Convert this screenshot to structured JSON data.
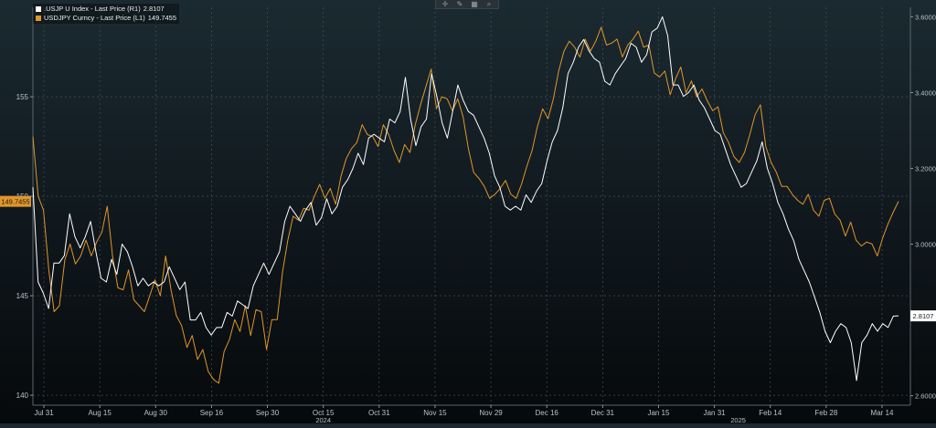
{
  "toolbar": {
    "icons": [
      "crosshair-icon",
      "pencil-icon",
      "grid-icon",
      "zoom-icon"
    ],
    "glyphs": [
      "✛",
      "✎",
      "▦",
      "⌕"
    ]
  },
  "legend": {
    "series": [
      {
        "label": ".USJP U Index - Last Price (R1)",
        "value": "2.8107",
        "color": "#ffffff"
      },
      {
        "label": "USDJPY Curncy - Last Price (L1)",
        "value": "149.7455",
        "color": "#e0962a"
      }
    ]
  },
  "chart_data": {
    "type": "line",
    "left_axis": {
      "ticks": [
        "155",
        "150",
        "145",
        "140"
      ],
      "ylim": [
        139.5,
        159.5
      ]
    },
    "right_axis": {
      "ticks": [
        "3.6000",
        "3.4000",
        "3.2000",
        "3.0000",
        "2.6000"
      ],
      "ylim": [
        2.575,
        3.625
      ]
    },
    "x_ticks": [
      "Jul 31",
      "Aug 15",
      "Aug 30",
      "Sep 16",
      "Sep 30",
      "Oct 15",
      "Oct 31",
      "Nov 15",
      "Nov 29",
      "Dec 16",
      "Dec 31",
      "Jan 15",
      "Jan 31",
      "Feb 14",
      "Feb 28",
      "Mar 14"
    ],
    "year_labels": [
      "2024",
      "2025"
    ],
    "last_value_tags": {
      "left": "149.7455",
      "right": "2.8107"
    },
    "series": [
      {
        "name": "USDJPY Curncy - Last Price (L1)",
        "axis": "left",
        "color": "#e0962a",
        "values": [
          153.0,
          150.0,
          149.3,
          146.3,
          144.2,
          144.5,
          146.8,
          147.6,
          146.6,
          147.0,
          147.8,
          147.0,
          147.7,
          148.2,
          149.5,
          147.0,
          145.4,
          145.3,
          146.3,
          144.8,
          144.5,
          144.2,
          145.0,
          145.8,
          145.0,
          147.0,
          145.3,
          144.0,
          143.5,
          142.4,
          143.0,
          141.8,
          142.3,
          141.2,
          140.8,
          140.6,
          142.2,
          142.8,
          143.8,
          143.2,
          144.5,
          143.0,
          144.3,
          144.2,
          142.3,
          143.8,
          143.8,
          146.2,
          147.8,
          149.0,
          148.8,
          149.4,
          149.3,
          150.0,
          150.6,
          149.9,
          150.4,
          149.6,
          151.0,
          151.9,
          152.4,
          152.7,
          153.6,
          153.1,
          153.0,
          152.5,
          153.6,
          153.1,
          152.3,
          151.7,
          152.6,
          152.2,
          153.6,
          154.6,
          155.5,
          156.4,
          154.4,
          155.0,
          154.9,
          154.3,
          154.9,
          154.0,
          152.4,
          151.2,
          150.9,
          150.5,
          149.9,
          150.1,
          150.4,
          150.8,
          150.1,
          149.9,
          150.6,
          151.5,
          152.3,
          153.5,
          154.4,
          153.9,
          154.9,
          156.3,
          157.3,
          157.8,
          157.5,
          157.0,
          157.9,
          157.3,
          157.8,
          158.5,
          157.6,
          157.7,
          157.9,
          157.0,
          157.6,
          157.9,
          158.3,
          157.5,
          157.6,
          156.2,
          156.0,
          156.3,
          155.1,
          155.9,
          156.5,
          155.2,
          155.8,
          155.0,
          155.4,
          154.8,
          154.3,
          154.5,
          153.2,
          152.7,
          152.0,
          151.7,
          152.2,
          153.1,
          154.1,
          154.6,
          152.5,
          151.7,
          151.2,
          150.5,
          150.5,
          150.1,
          149.8,
          149.6,
          150.1,
          149.3,
          149.0,
          149.8,
          149.9,
          149.1,
          148.8,
          148.0,
          148.7,
          147.8,
          147.5,
          147.7,
          147.6,
          147.0,
          147.9,
          148.6,
          149.2,
          149.7455
        ]
      },
      {
        "name": ".USJP U Index - Last Price (R1)",
        "axis": "right",
        "color": "#ffffff",
        "values": [
          3.15,
          2.9,
          2.87,
          2.83,
          2.95,
          2.95,
          2.97,
          3.08,
          3.02,
          2.99,
          3.02,
          3.06,
          2.98,
          2.91,
          2.9,
          2.96,
          2.92,
          3.0,
          2.98,
          2.94,
          2.89,
          2.91,
          2.89,
          2.9,
          2.89,
          2.9,
          2.94,
          2.91,
          2.88,
          2.9,
          2.8,
          2.8,
          2.82,
          2.78,
          2.76,
          2.78,
          2.78,
          2.82,
          2.81,
          2.85,
          2.84,
          2.83,
          2.89,
          2.92,
          2.95,
          2.92,
          2.95,
          2.98,
          3.06,
          3.1,
          3.08,
          3.06,
          3.09,
          3.11,
          3.05,
          3.07,
          3.12,
          3.08,
          3.1,
          3.15,
          3.17,
          3.2,
          3.24,
          3.21,
          3.28,
          3.29,
          3.28,
          3.27,
          3.33,
          3.32,
          3.35,
          3.44,
          3.33,
          3.26,
          3.31,
          3.33,
          3.45,
          3.39,
          3.32,
          3.28,
          3.35,
          3.42,
          3.38,
          3.35,
          3.34,
          3.31,
          3.28,
          3.24,
          3.18,
          3.15,
          3.1,
          3.09,
          3.1,
          3.09,
          3.13,
          3.11,
          3.14,
          3.16,
          3.22,
          3.27,
          3.3,
          3.36,
          3.45,
          3.48,
          3.52,
          3.54,
          3.51,
          3.49,
          3.48,
          3.43,
          3.42,
          3.45,
          3.47,
          3.49,
          3.53,
          3.52,
          3.48,
          3.5,
          3.56,
          3.57,
          3.6,
          3.55,
          3.42,
          3.42,
          3.39,
          3.4,
          3.42,
          3.38,
          3.36,
          3.33,
          3.3,
          3.29,
          3.25,
          3.21,
          3.18,
          3.15,
          3.16,
          3.19,
          3.22,
          3.27,
          3.2,
          3.16,
          3.11,
          3.08,
          3.04,
          3.01,
          2.96,
          2.93,
          2.9,
          2.86,
          2.82,
          2.77,
          2.74,
          2.77,
          2.79,
          2.78,
          2.74,
          2.64,
          2.74,
          2.76,
          2.79,
          2.77,
          2.79,
          2.78,
          2.81,
          2.8107
        ]
      }
    ]
  }
}
